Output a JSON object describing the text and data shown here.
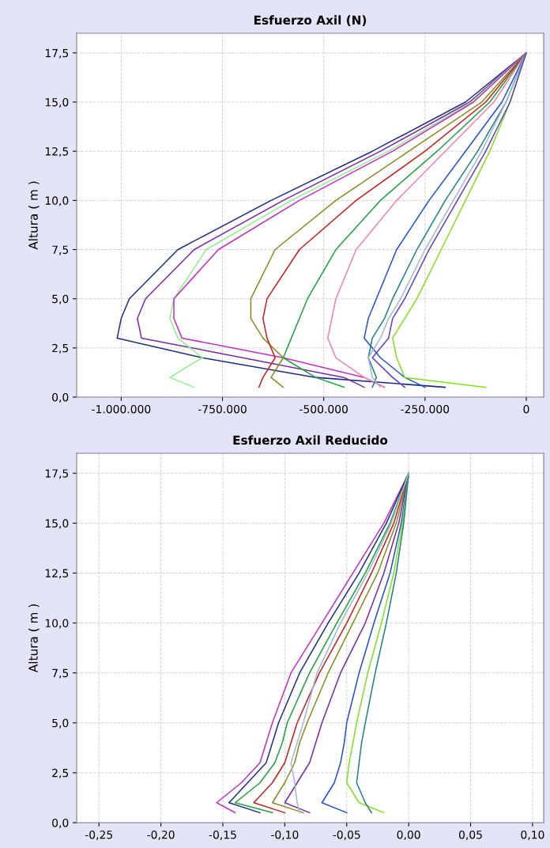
{
  "chart_data": [
    {
      "type": "line",
      "title": "Esfuerzo Axil (N)",
      "ylabel": "Altura ( m )",
      "grid": true,
      "marker": "none",
      "line_style": "solid",
      "xlim": [
        -1110000,
        43000
      ],
      "ylim": [
        0,
        18.5
      ],
      "xticks": [
        {
          "value": -1000000,
          "label": "-1.000.000"
        },
        {
          "value": -750000,
          "label": "-750.000"
        },
        {
          "value": -500000,
          "label": "-500.000"
        },
        {
          "value": -250000,
          "label": "-250.000"
        },
        0
      ],
      "yticks": [
        {
          "value": 0,
          "label": "0,0"
        },
        {
          "value": 2.5,
          "label": "2,5"
        },
        {
          "value": 5,
          "label": "5,0"
        },
        {
          "value": 7.5,
          "label": "7,5"
        },
        {
          "value": 10,
          "label": "10,0"
        },
        {
          "value": 12.5,
          "label": "12,5"
        },
        {
          "value": 15,
          "label": "15,0"
        },
        {
          "value": 17.5,
          "label": "17,5"
        }
      ],
      "series": [
        {
          "color": "#1f2f7f",
          "x": [
            0,
            -150000,
            -380000,
            -630000,
            -860000,
            -980000,
            -1000000,
            -1010000,
            -800000,
            -520000,
            -200000
          ],
          "values": [
            17.5,
            15,
            12.5,
            10,
            7.5,
            5,
            4,
            3,
            2,
            1,
            0.5
          ]
        },
        {
          "color": "#7a2aa0",
          "x": [
            0,
            -140000,
            -360000,
            -600000,
            -820000,
            -940000,
            -960000,
            -950000,
            -700000,
            -450000,
            -400000
          ],
          "values": [
            17.5,
            15,
            12.5,
            10,
            7.5,
            5,
            4,
            3,
            2,
            1,
            0.5
          ]
        },
        {
          "color": "#8ff08f",
          "x": [
            0,
            -135000,
            -340000,
            -580000,
            -790000,
            -870000,
            -880000,
            -860000,
            -800000,
            -880000,
            -820000
          ],
          "values": [
            17.5,
            15,
            12.5,
            10,
            7.5,
            5,
            4,
            3,
            2,
            1,
            0.5
          ]
        },
        {
          "color": "#c030c0",
          "x": [
            0,
            -130000,
            -330000,
            -560000,
            -760000,
            -870000,
            -870000,
            -850000,
            -600000,
            -400000,
            -350000
          ],
          "values": [
            17.5,
            15,
            12.5,
            10,
            7.5,
            5,
            4,
            3,
            2,
            1,
            0.5
          ]
        },
        {
          "color": "#8a8a20",
          "x": [
            0,
            -110000,
            -290000,
            -470000,
            -620000,
            -680000,
            -680000,
            -650000,
            -600000,
            -630000,
            -600000
          ],
          "values": [
            17.5,
            15,
            12.5,
            10,
            7.5,
            5,
            4,
            3,
            2,
            1,
            0.5
          ]
        },
        {
          "color": "#c02020",
          "x": [
            0,
            -100000,
            -250000,
            -420000,
            -560000,
            -640000,
            -650000,
            -640000,
            -620000,
            -650000,
            -660000
          ],
          "values": [
            17.5,
            15,
            12.5,
            10,
            7.5,
            5,
            4,
            3,
            2,
            1,
            0.5
          ]
        },
        {
          "color": "#20a040",
          "x": [
            0,
            -90000,
            -220000,
            -360000,
            -470000,
            -540000,
            -560000,
            -580000,
            -600000,
            -520000,
            -450000
          ],
          "values": [
            17.5,
            15,
            12.5,
            10,
            7.5,
            5,
            4,
            3,
            2,
            1,
            0.5
          ]
        },
        {
          "color": "#f080b0",
          "x": [
            0,
            -80000,
            -200000,
            -320000,
            -420000,
            -470000,
            -480000,
            -490000,
            -470000,
            -400000,
            -350000
          ],
          "values": [
            17.5,
            15,
            12.5,
            10,
            7.5,
            5,
            4,
            3,
            2,
            1,
            0.5
          ]
        },
        {
          "color": "#2050d0",
          "x": [
            0,
            -60000,
            -150000,
            -240000,
            -320000,
            -370000,
            -390000,
            -400000,
            -360000,
            -300000,
            -250000
          ],
          "values": [
            17.5,
            15,
            12.5,
            10,
            7.5,
            5,
            4,
            3,
            2,
            1,
            0.5
          ]
        },
        {
          "color": "#208080",
          "x": [
            0,
            -50000,
            -120000,
            -200000,
            -270000,
            -330000,
            -350000,
            -380000,
            -390000,
            -370000,
            -380000
          ],
          "values": [
            17.5,
            15,
            12.5,
            10,
            7.5,
            5,
            4,
            3,
            2,
            1,
            0.5
          ]
        },
        {
          "color": "#a0b8d0",
          "x": [
            0,
            -50000,
            -110000,
            -180000,
            -250000,
            -310000,
            -340000,
            -360000,
            -390000,
            -380000,
            -360000
          ],
          "values": [
            17.5,
            15,
            12.5,
            10,
            7.5,
            5,
            4,
            3,
            2,
            1,
            0.5
          ]
        },
        {
          "color": "#80e020",
          "x": [
            0,
            -40000,
            -90000,
            -150000,
            -210000,
            -270000,
            -300000,
            -330000,
            -320000,
            -300000,
            -100000
          ],
          "values": [
            17.5,
            15,
            12.5,
            10,
            7.5,
            5,
            4,
            3,
            2,
            1,
            0.5
          ]
        },
        {
          "color": "#6040c0",
          "x": [
            0,
            -40000,
            -100000,
            -170000,
            -240000,
            -300000,
            -330000,
            -340000,
            -380000,
            -330000,
            -300000
          ],
          "values": [
            17.5,
            15,
            12.5,
            10,
            7.5,
            5,
            4,
            3,
            2,
            1,
            0.5
          ]
        }
      ]
    },
    {
      "type": "line",
      "title": "Esfuerzo Axil Reducido",
      "ylabel": "Altura ( m )",
      "grid": true,
      "marker": "none",
      "line_style": "solid",
      "xlim": [
        -0.268,
        0.109
      ],
      "ylim": [
        0,
        18.5
      ],
      "xticks": [
        {
          "value": -0.25,
          "label": "-0,25"
        },
        {
          "value": -0.2,
          "label": "-0,20"
        },
        {
          "value": -0.15,
          "label": "-0,15"
        },
        {
          "value": -0.1,
          "label": "-0,10"
        },
        {
          "value": -0.05,
          "label": "-0,05"
        },
        {
          "value": 0,
          "label": "0,00"
        },
        {
          "value": 0.05,
          "label": "0,05"
        },
        {
          "value": 0.1,
          "label": "0,10"
        }
      ],
      "yticks": [
        {
          "value": 0,
          "label": "0,0"
        },
        {
          "value": 2.5,
          "label": "2,5"
        },
        {
          "value": 5,
          "label": "5,0"
        },
        {
          "value": 7.5,
          "label": "7,5"
        },
        {
          "value": 10,
          "label": "10,0"
        },
        {
          "value": 12.5,
          "label": "12,5"
        },
        {
          "value": 15,
          "label": "15,0"
        },
        {
          "value": 17.5,
          "label": "17,5"
        }
      ],
      "series": [
        {
          "color": "#c030c0",
          "x": [
            0,
            -0.02,
            -0.045,
            -0.07,
            -0.095,
            -0.11,
            -0.115,
            -0.12,
            -0.135,
            -0.155,
            -0.14
          ],
          "values": [
            17.5,
            15,
            12.5,
            10,
            7.5,
            5,
            4,
            3,
            2,
            1,
            0.5
          ]
        },
        {
          "color": "#1f2f7f",
          "x": [
            0,
            -0.018,
            -0.04,
            -0.065,
            -0.088,
            -0.105,
            -0.11,
            -0.115,
            -0.13,
            -0.145,
            -0.12
          ],
          "values": [
            17.5,
            15,
            12.5,
            10,
            7.5,
            5,
            4,
            3,
            2,
            1,
            0.5
          ]
        },
        {
          "color": "#20a040",
          "x": [
            0,
            -0.015,
            -0.035,
            -0.058,
            -0.08,
            -0.098,
            -0.102,
            -0.108,
            -0.12,
            -0.14,
            -0.11
          ],
          "values": [
            17.5,
            15,
            12.5,
            10,
            7.5,
            5,
            4,
            3,
            2,
            1,
            0.5
          ]
        },
        {
          "color": "#c02020",
          "x": [
            0,
            -0.012,
            -0.03,
            -0.05,
            -0.072,
            -0.09,
            -0.095,
            -0.1,
            -0.11,
            -0.125,
            -0.1
          ],
          "values": [
            17.5,
            15,
            12.5,
            10,
            7.5,
            5,
            4,
            3,
            2,
            1,
            0.5
          ]
        },
        {
          "color": "#8a8a20",
          "x": [
            0,
            -0.01,
            -0.025,
            -0.045,
            -0.065,
            -0.082,
            -0.088,
            -0.092,
            -0.1,
            -0.11,
            -0.085
          ],
          "values": [
            17.5,
            15,
            12.5,
            10,
            7.5,
            5,
            4,
            3,
            2,
            1,
            0.5
          ]
        },
        {
          "color": "#7a2aa0",
          "x": [
            0,
            -0.008,
            -0.02,
            -0.035,
            -0.055,
            -0.07,
            -0.075,
            -0.08,
            -0.09,
            -0.1,
            -0.08
          ],
          "values": [
            17.5,
            15,
            12.5,
            10,
            7.5,
            5,
            4,
            3,
            2,
            1,
            0.5
          ]
        },
        {
          "color": "#2050d0",
          "x": [
            0,
            -0.006,
            -0.015,
            -0.028,
            -0.04,
            -0.05,
            -0.052,
            -0.055,
            -0.06,
            -0.07,
            -0.05
          ],
          "values": [
            17.5,
            15,
            12.5,
            10,
            7.5,
            5,
            4,
            3,
            2,
            1,
            0.5
          ]
        },
        {
          "color": "#80e020",
          "x": [
            0,
            -0.005,
            -0.012,
            -0.022,
            -0.033,
            -0.042,
            -0.045,
            -0.048,
            -0.05,
            -0.04,
            -0.02
          ],
          "values": [
            17.5,
            15,
            12.5,
            10,
            7.5,
            5,
            4,
            3,
            2,
            1,
            0.5
          ]
        },
        {
          "color": "#208080",
          "x": [
            0,
            -0.004,
            -0.01,
            -0.018,
            -0.027,
            -0.035,
            -0.038,
            -0.04,
            -0.042,
            -0.035,
            -0.03
          ],
          "values": [
            17.5,
            15,
            12.5,
            10,
            7.5,
            5,
            4,
            3,
            2,
            1,
            0.5
          ]
        },
        {
          "color": "#a0b8d0",
          "x": [
            0,
            -0.014,
            -0.033,
            -0.055,
            -0.074,
            -0.085,
            -0.09,
            -0.095,
            -0.092,
            -0.09,
            -0.088
          ],
          "values": [
            17.5,
            15,
            12.5,
            10,
            7.5,
            5,
            4,
            3,
            2,
            1,
            0.5
          ]
        }
      ]
    }
  ]
}
